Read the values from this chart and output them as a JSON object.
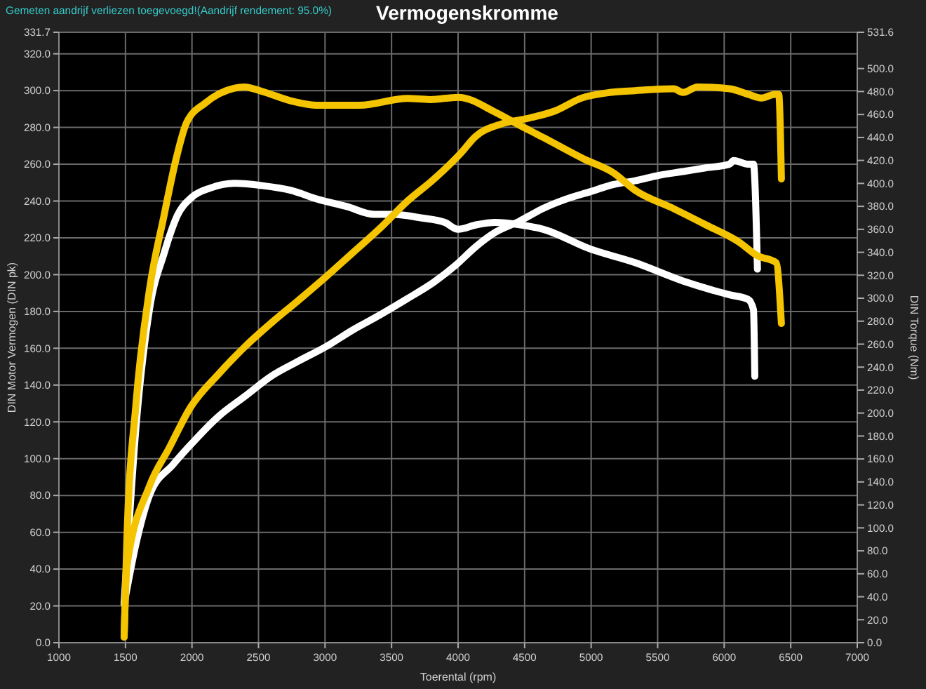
{
  "chart_data": {
    "type": "line",
    "title": "Vermogenskromme",
    "xlabel": "Toerental (rpm)",
    "ylabel": "DIN Motor Vermogen (DIN pk)",
    "y2label": "DIN Torque (Nm)",
    "annotations": [
      "Gemeten aandrijf verliezen toegevoegd!(Aandrijf rendement: 95.0%)"
    ],
    "xlim": [
      1000,
      7000
    ],
    "xticks": [
      1000,
      1500,
      2000,
      2500,
      3000,
      3500,
      4000,
      4500,
      5000,
      5500,
      6000,
      6500,
      7000
    ],
    "ylim": [
      0,
      331.7
    ],
    "yticks": [
      {
        "value": 0,
        "label": "0.0"
      },
      {
        "value": 20,
        "label": "20.0"
      },
      {
        "value": 40,
        "label": "40.0"
      },
      {
        "value": 60,
        "label": "60.0"
      },
      {
        "value": 80,
        "label": "80.0"
      },
      {
        "value": 100,
        "label": "100.0"
      },
      {
        "value": 120,
        "label": "120.0"
      },
      {
        "value": 140,
        "label": "140.0"
      },
      {
        "value": 160,
        "label": "160.0"
      },
      {
        "value": 180,
        "label": "180.0"
      },
      {
        "value": 200,
        "label": "200.0"
      },
      {
        "value": 220,
        "label": "220.0"
      },
      {
        "value": 240,
        "label": "240.0"
      },
      {
        "value": 260,
        "label": "260.0"
      },
      {
        "value": 280,
        "label": "280.0"
      },
      {
        "value": 300,
        "label": "300.0"
      },
      {
        "value": 320,
        "label": "320.0"
      },
      {
        "value": 331.7,
        "label": "331.7"
      }
    ],
    "y2lim": [
      0,
      531.6
    ],
    "y2ticks": [
      {
        "value": 0,
        "label": "0.0"
      },
      {
        "value": 20,
        "label": "20.0"
      },
      {
        "value": 40,
        "label": "40.0"
      },
      {
        "value": 60,
        "label": "60.0"
      },
      {
        "value": 80,
        "label": "80.0"
      },
      {
        "value": 100,
        "label": "100.0"
      },
      {
        "value": 120,
        "label": "120.0"
      },
      {
        "value": 140,
        "label": "140.0"
      },
      {
        "value": 160,
        "label": "160.0"
      },
      {
        "value": 180,
        "label": "180.0"
      },
      {
        "value": 200,
        "label": "200.0"
      },
      {
        "value": 220,
        "label": "220.0"
      },
      {
        "value": 240,
        "label": "240.0"
      },
      {
        "value": 260,
        "label": "260.0"
      },
      {
        "value": 280,
        "label": "280.0"
      },
      {
        "value": 300,
        "label": "300.0"
      },
      {
        "value": 320,
        "label": "320.0"
      },
      {
        "value": 340,
        "label": "340.0"
      },
      {
        "value": 360,
        "label": "360.0"
      },
      {
        "value": 380,
        "label": "380.0"
      },
      {
        "value": 400,
        "label": "400.0"
      },
      {
        "value": 420,
        "label": "420.0"
      },
      {
        "value": 440,
        "label": "440.0"
      },
      {
        "value": 460,
        "label": "460.0"
      },
      {
        "value": 480,
        "label": "480.0"
      },
      {
        "value": 500,
        "label": "500.0"
      },
      {
        "value": 531.6,
        "label": "531.6"
      }
    ],
    "grid": true,
    "series": [
      {
        "color": "#ffffff",
        "x": [
          1490,
          1580,
          1680,
          1860,
          1970,
          2200,
          2400,
          2600,
          2800,
          3010,
          3210,
          3410,
          3620,
          3820,
          3980,
          4130,
          4280,
          4460,
          4640,
          4810,
          4990,
          5170,
          5330,
          5510,
          5690,
          5860,
          6040,
          6070,
          6180,
          6220,
          6250
        ],
        "values": [
          21,
          54,
          80,
          97,
          106,
          123,
          134,
          145,
          153,
          161,
          170,
          178,
          187,
          196,
          205,
          215,
          223,
          229,
          236,
          241,
          245,
          249,
          251,
          254,
          256,
          258,
          260,
          262,
          260,
          260,
          203
        ]
      },
      {
        "color": "#ffffff",
        "axis": "y2",
        "x": [
          1490,
          1580,
          1680,
          1790,
          1890,
          2000,
          2140,
          2320,
          2530,
          2740,
          2950,
          3160,
          3370,
          3510,
          3720,
          3900,
          4000,
          4140,
          4280,
          4460,
          4640,
          4990,
          5330,
          5690,
          6040,
          6180,
          6220,
          6230
        ],
        "values": [
          34,
          189,
          290,
          339,
          372,
          388,
          396,
          400,
          398,
          394,
          386,
          380,
          373,
          373,
          370,
          366,
          360,
          364,
          366,
          364,
          360,
          343,
          331,
          315,
          303,
          299,
          290,
          232
        ]
      },
      {
        "color": "#f5c400",
        "x": [
          1490,
          1510,
          1680,
          1830,
          1990,
          2200,
          2400,
          2600,
          2800,
          3010,
          3210,
          3410,
          3620,
          3820,
          4020,
          4130,
          4330,
          4530,
          4730,
          4930,
          5140,
          5330,
          5620,
          5690,
          5800,
          6040,
          6180,
          6280,
          6380,
          6410,
          6430
        ],
        "values": [
          3,
          41,
          85,
          106,
          128,
          146,
          161,
          174,
          186,
          199,
          212,
          225,
          240,
          252,
          266,
          275,
          282,
          285,
          289,
          296,
          299,
          300,
          301,
          299,
          302,
          301,
          298,
          296,
          298,
          298,
          252
        ]
      },
      {
        "color": "#f5c400",
        "axis": "y2",
        "x": [
          1490,
          1510,
          1580,
          1680,
          1790,
          1880,
          1960,
          2100,
          2320,
          2390,
          2530,
          2740,
          2950,
          3260,
          3620,
          3790,
          4000,
          4280,
          4440,
          4640,
          4950,
          5170,
          5330,
          5620,
          5860,
          6110,
          6250,
          6390,
          6430
        ],
        "values": [
          5,
          87,
          209,
          307,
          372,
          421,
          453,
          470,
          483,
          484,
          480,
          472,
          468,
          468,
          474,
          473,
          475,
          462,
          452,
          440,
          421,
          409,
          394,
          378,
          364,
          349,
          337,
          331,
          278
        ]
      }
    ]
  }
}
